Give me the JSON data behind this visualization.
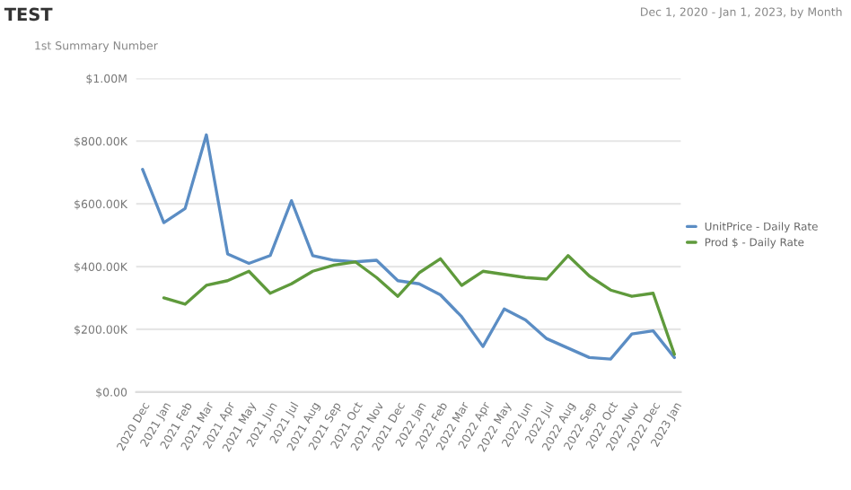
{
  "chart_data": {
    "type": "line",
    "title": "TEST",
    "subtitle": "1st Summary Number",
    "annotations": [
      "Dec 1, 2020 - Jan 1, 2023, by Month"
    ],
    "categories": [
      "2020 Dec",
      "2021 Jan",
      "2021 Feb",
      "2021 Mar",
      "2021 Apr",
      "2021 May",
      "2021 Jun",
      "2021 Jul",
      "2021 Aug",
      "2021 Sep",
      "2021 Oct",
      "2021 Nov",
      "2021 Dec",
      "2022 Jan",
      "2022 Feb",
      "2022 Mar",
      "2022 Apr",
      "2022 May",
      "2022 Jun",
      "2022 Jul",
      "2022 Aug",
      "2022 Sep",
      "2022 Oct",
      "2022 Nov",
      "2022 Dec",
      "2023 Jan"
    ],
    "series": [
      {
        "name": "UnitPrice - Daily Rate",
        "color": "#5b8dc4",
        "values": [
          710000,
          540000,
          585000,
          820000,
          440000,
          410000,
          435000,
          610000,
          435000,
          420000,
          415000,
          420000,
          355000,
          345000,
          310000,
          240000,
          145000,
          265000,
          230000,
          170000,
          140000,
          110000,
          105000,
          185000,
          195000,
          110000
        ]
      },
      {
        "name": "Prod $ - Daily Rate",
        "color": "#5f9a3c",
        "values": [
          null,
          300000,
          280000,
          340000,
          355000,
          385000,
          315000,
          345000,
          385000,
          405000,
          415000,
          365000,
          305000,
          380000,
          425000,
          340000,
          385000,
          375000,
          365000,
          360000,
          435000,
          370000,
          325000,
          305000,
          315000,
          120000
        ]
      }
    ],
    "ylim": [
      0,
      1000000
    ],
    "yticks": [
      {
        "value": 0,
        "label": "$0.00"
      },
      {
        "value": 200000,
        "label": "$200.00K"
      },
      {
        "value": 400000,
        "label": "$400.00K"
      },
      {
        "value": 600000,
        "label": "$600.00K"
      },
      {
        "value": 800000,
        "label": "$800.00K"
      },
      {
        "value": 1000000,
        "label": "$1.00M"
      }
    ],
    "grid": "y",
    "legend": "right",
    "marker": "none",
    "line_style": "solid"
  }
}
